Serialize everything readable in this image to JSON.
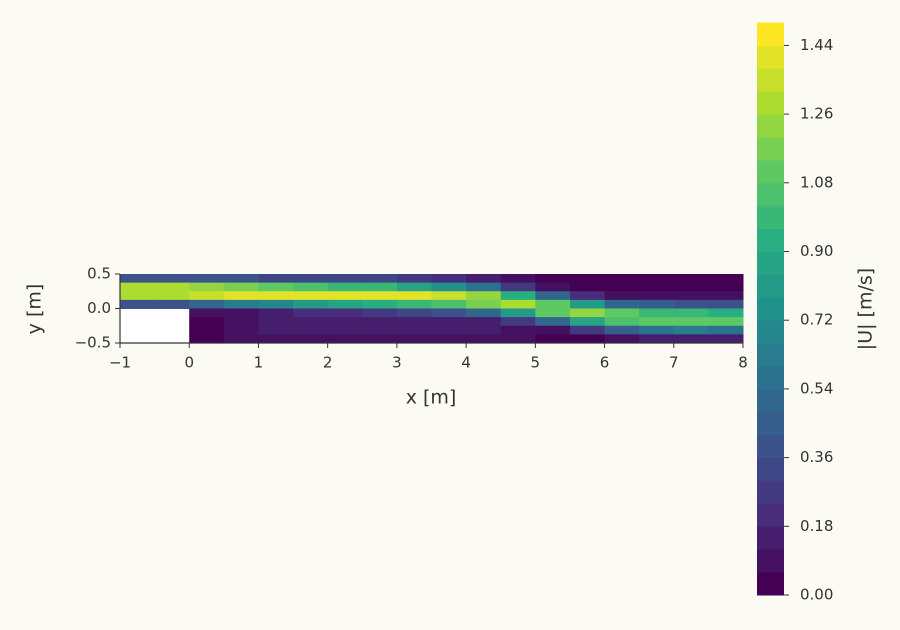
{
  "chart_data": {
    "type": "contourf",
    "xlabel": "x [m]",
    "ylabel": "y [m]",
    "colorbar_label": "|U| [m/s]",
    "colormap": "viridis",
    "levels": 25,
    "clim": [
      0,
      1.5
    ],
    "xlim": [
      -1,
      8
    ],
    "ylim": [
      -0.5,
      0.5
    ],
    "xticks": [
      {
        "value": -1,
        "label": "−1"
      },
      0,
      1,
      2,
      3,
      4,
      5,
      6,
      7,
      8
    ],
    "yticks": [
      {
        "value": -0.5,
        "label": "−0.5"
      },
      {
        "value": 0,
        "label": "0.0"
      },
      0.5
    ],
    "cticks": [
      {
        "value": 0,
        "label": "0.00"
      },
      {
        "value": 0.18,
        "label": "0.18"
      },
      {
        "value": 0.36,
        "label": "0.36"
      },
      {
        "value": 0.54,
        "label": "0.54"
      },
      {
        "value": 0.72,
        "label": "0.72"
      },
      {
        "value": 0.9,
        "label": "0.90"
      },
      {
        "value": 1.08,
        "label": "1.08"
      },
      {
        "value": 1.26,
        "label": "1.26"
      },
      {
        "value": 1.44,
        "label": "1.44"
      }
    ],
    "x": [
      -0.75,
      -0.25,
      0.25,
      0.75,
      1.25,
      1.75,
      2.25,
      2.75,
      3.25,
      3.75,
      4.25,
      4.75,
      5.25,
      5.75,
      6.25,
      6.75,
      7.25,
      7.75
    ],
    "y": [
      0.4375,
      0.3125,
      0.1875,
      0.0625,
      -0.0625,
      -0.1875,
      -0.3125,
      -0.4375
    ],
    "z": [
      [
        0.38,
        0.38,
        0.38,
        0.39,
        0.34,
        0.34,
        0.3,
        0.3,
        0.26,
        0.2,
        0.13,
        0.06,
        0.04,
        0.03,
        0.03,
        0.03,
        0.03,
        0.03
      ],
      [
        1.29,
        1.29,
        1.23,
        1.19,
        1.12,
        1.07,
        1.0,
        0.97,
        0.89,
        0.76,
        0.58,
        0.29,
        0.11,
        0.04,
        0.03,
        0.03,
        0.03,
        0.03
      ],
      [
        1.29,
        1.29,
        1.35,
        1.39,
        1.41,
        1.41,
        1.42,
        1.4,
        1.38,
        1.32,
        1.22,
        0.9,
        0.52,
        0.23,
        0.11,
        0.08,
        0.09,
        0.09
      ],
      [
        0.38,
        0.38,
        0.5,
        0.62,
        0.67,
        0.79,
        0.84,
        0.93,
        0.97,
        1.06,
        1.18,
        1.28,
        1.13,
        0.78,
        0.52,
        0.42,
        0.37,
        0.37
      ],
      [
        null,
        null,
        0.06,
        0.1,
        0.12,
        0.18,
        0.21,
        0.29,
        0.32,
        0.39,
        0.52,
        0.82,
        1.13,
        1.22,
        1.11,
        1.01,
        0.96,
        0.95
      ],
      [
        null,
        null,
        0.05,
        0.08,
        0.14,
        0.15,
        0.15,
        0.16,
        0.16,
        0.12,
        0.12,
        0.24,
        0.52,
        0.86,
        1.07,
        1.1,
        1.12,
        1.11
      ],
      [
        null,
        null,
        0.05,
        0.1,
        0.12,
        0.13,
        0.14,
        0.14,
        0.14,
        0.12,
        0.12,
        0.08,
        0.11,
        0.28,
        0.47,
        0.54,
        0.6,
        0.59
      ],
      [
        null,
        null,
        0.05,
        0.08,
        0.08,
        0.08,
        0.08,
        0.08,
        0.08,
        0.08,
        0.08,
        0.06,
        0.04,
        0.05,
        0.1,
        0.12,
        0.15,
        0.15
      ]
    ]
  }
}
